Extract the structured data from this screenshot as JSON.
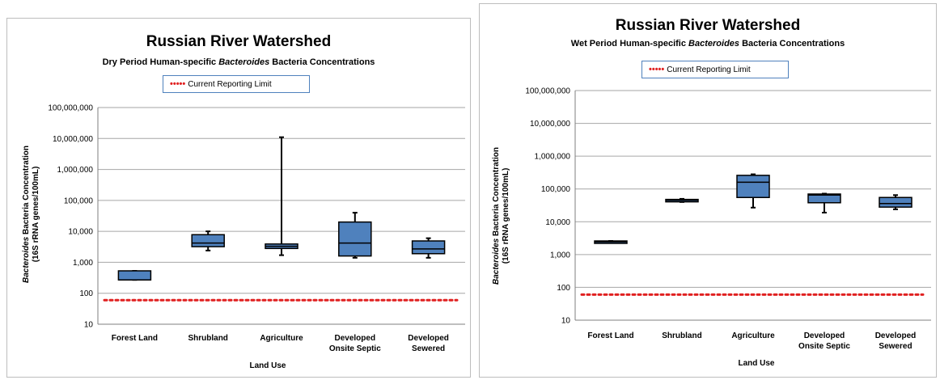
{
  "chart_data": [
    {
      "type": "box",
      "title": "Russian River Watershed",
      "subtitle_prefix": "Dry Period  Human-specific ",
      "subtitle_italic": "Bacteroides",
      "subtitle_suffix": " Bacteria Concentrations",
      "legend_label": "Current Reporting Limit",
      "ylabel_italic": "Bacteroides",
      "ylabel_line1_suffix": " Bacteria Concentration",
      "ylabel_line2": "(16S rRNA genes/100mL)",
      "xlabel": "Land Use",
      "yscale": "log",
      "ylim": [
        10,
        100000000
      ],
      "yticks": [
        "10",
        "100",
        "1,000",
        "10,000",
        "100,000",
        "1,000,000",
        "10,000,000",
        "100,000,000"
      ],
      "categories": [
        [
          "Forest Land"
        ],
        [
          "Shrubland"
        ],
        [
          "Agriculture"
        ],
        [
          "Developed",
          "Onsite Septic"
        ],
        [
          "Developed",
          "Sewered"
        ]
      ],
      "boxes": [
        {
          "min": 270,
          "q1": 270,
          "median": 270,
          "q3": 530,
          "max": 530
        },
        {
          "min": 2400,
          "q1": 3200,
          "median": 4200,
          "q3": 7800,
          "max": 10000
        },
        {
          "min": 1700,
          "q1": 2800,
          "median": 3300,
          "q3": 3900,
          "max": 11000000
        },
        {
          "min": 1400,
          "q1": 1600,
          "median": 4200,
          "q3": 20000,
          "max": 40000
        },
        {
          "min": 1400,
          "q1": 1900,
          "median": 2700,
          "q3": 4900,
          "max": 6000
        }
      ],
      "reporting_limit": 60,
      "colors": {
        "box": "#4f81bd",
        "limit": "#e02020",
        "grid": "#a6a6a6"
      }
    },
    {
      "type": "box",
      "title": "Russian River Watershed",
      "subtitle_prefix": "Wet Period  Human-specific ",
      "subtitle_italic": "Bacteroides",
      "subtitle_suffix": " Bacteria Concentrations",
      "legend_label": "Current Reporting Limit",
      "ylabel_italic": "Bacteroides",
      "ylabel_line1_suffix": " Bacteria Concentration",
      "ylabel_line2": "(16S  rRNA genes/100mL)",
      "xlabel": "Land Use",
      "yscale": "log",
      "ylim": [
        10,
        100000000
      ],
      "yticks": [
        "10",
        "100",
        "1,000",
        "10,000",
        "100,000",
        "1,000,000",
        "10,000,000",
        "100,000,000"
      ],
      "categories": [
        [
          "Forest Land"
        ],
        [
          "Shrubland"
        ],
        [
          "Agriculture"
        ],
        [
          "Developed",
          "Onsite Septic"
        ],
        [
          "Developed",
          "Sewered"
        ]
      ],
      "boxes": [
        {
          "min": 2300,
          "q1": 2300,
          "median": 2450,
          "q3": 2600,
          "max": 2600
        },
        {
          "min": 40000,
          "q1": 42000,
          "median": 45000,
          "q3": 48000,
          "max": 50000
        },
        {
          "min": 27000,
          "q1": 55000,
          "median": 160000,
          "q3": 260000,
          "max": 280000
        },
        {
          "min": 19000,
          "q1": 38000,
          "median": 65000,
          "q3": 70000,
          "max": 72000
        },
        {
          "min": 24000,
          "q1": 28000,
          "median": 36000,
          "q3": 55000,
          "max": 65000
        }
      ],
      "reporting_limit": 60,
      "colors": {
        "box": "#4f81bd",
        "limit": "#e02020",
        "grid": "#a6a6a6"
      }
    }
  ]
}
